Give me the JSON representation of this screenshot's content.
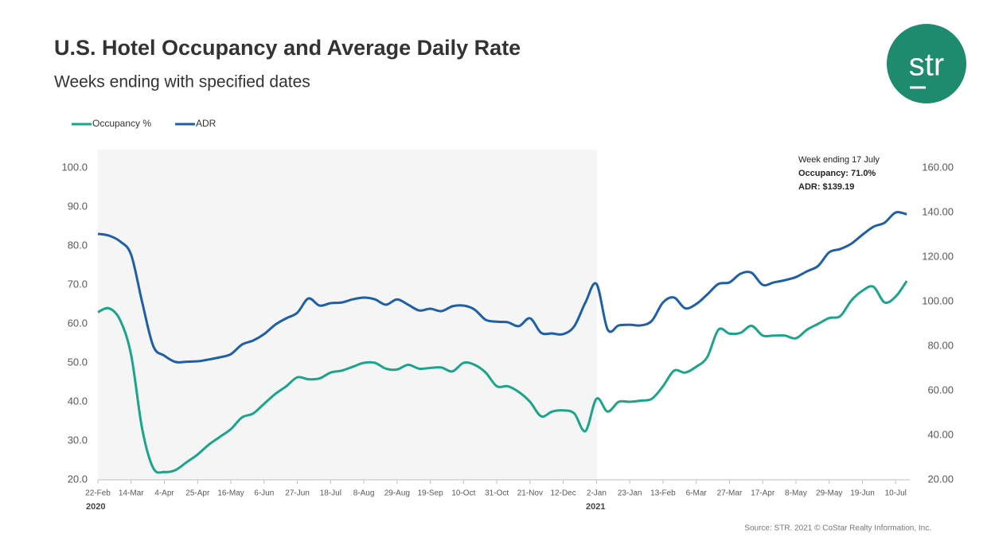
{
  "chart_data": {
    "type": "line",
    "title": "U.S. Hotel Occupancy and Average Daily Rate",
    "subtitle": "Weeks ending with specified dates",
    "logo_text": "str",
    "source": "Source: STR. 2021 © CoStar Realty Information, Inc.",
    "annotation": [
      "Week ending 17 July",
      "Occupancy: 71.0%",
      "ADR: $139.19"
    ],
    "year_labels": [
      "2020",
      "2021"
    ],
    "legend": "top-left",
    "categories": [
      "22-Feb",
      null,
      null,
      "14-Mar",
      null,
      null,
      "4-Apr",
      null,
      null,
      "25-Apr",
      null,
      null,
      "16-May",
      null,
      null,
      "6-Jun",
      null,
      null,
      "27-Jun",
      null,
      null,
      "18-Jul",
      null,
      null,
      "8-Aug",
      null,
      null,
      "29-Aug",
      null,
      null,
      "19-Sep",
      null,
      null,
      "10-Oct",
      null,
      null,
      "31-Oct",
      null,
      null,
      "21-Nov",
      null,
      null,
      "12-Dec",
      null,
      null,
      "2-Jan",
      null,
      null,
      "23-Jan",
      null,
      null,
      "13-Feb",
      null,
      null,
      "6-Mar",
      null,
      null,
      "27-Mar",
      null,
      null,
      "17-Apr",
      null,
      null,
      "8-May",
      null,
      null,
      "29-May",
      null,
      null,
      "19-Jun",
      null,
      null,
      "10-Jul",
      null
    ],
    "series": [
      {
        "name": "Occupancy %",
        "color": "#1aa58a",
        "values": [
          63.0,
          64.0,
          61,
          52,
          33,
          23,
          22,
          22.5,
          24.5,
          26.5,
          29,
          31,
          33,
          36,
          37,
          39.5,
          42,
          44,
          46.3,
          45.8,
          46,
          47.5,
          48,
          49,
          50,
          50,
          48.5,
          48.3,
          49.5,
          48.5,
          48.7,
          48.8,
          47.8,
          50,
          49.5,
          47.5,
          44,
          44,
          42.5,
          40,
          36.3,
          37.5,
          37.8,
          37,
          32.5,
          40.8,
          37.5,
          40,
          40,
          40.3,
          40.8,
          44,
          48,
          47.5,
          49,
          51.5,
          58.5,
          57.5,
          57.7,
          59.5,
          57,
          57,
          57,
          56.3,
          58.5,
          60,
          61.5,
          62,
          66,
          68.5,
          69.5,
          65.5,
          67,
          71.0
        ]
      },
      {
        "name": "ADR",
        "color": "#1f5fa8",
        "axis": "y2",
        "values": [
          130.4,
          129.6,
          127,
          121,
          99.6,
          80,
          75.7,
          72.9,
          73,
          73.2,
          74,
          75,
          76.4,
          80.7,
          82.5,
          85.4,
          89.6,
          92.5,
          95,
          101.4,
          98.2,
          99.3,
          99.6,
          101,
          101.8,
          101,
          98.6,
          101,
          98.6,
          96,
          96.8,
          95.7,
          97.9,
          98.2,
          96.4,
          91.8,
          91,
          90.7,
          89,
          92.5,
          86,
          85.7,
          85.4,
          89,
          99.6,
          107.9,
          87.5,
          89.3,
          89.6,
          89.3,
          91.4,
          99.6,
          101.8,
          97,
          98.9,
          103.2,
          107.9,
          108.6,
          112.5,
          112.9,
          107.5,
          108.6,
          109.6,
          111,
          113.6,
          116,
          122.1,
          123.6,
          126,
          130,
          133.6,
          135.4,
          140,
          139.19
        ]
      }
    ],
    "ylim": [
      20,
      100
    ],
    "yticks": [
      {
        "value": 20,
        "label": "20.0"
      },
      {
        "value": 30,
        "label": "30.0"
      },
      {
        "value": 40,
        "label": "40.0"
      },
      {
        "value": 50,
        "label": "50.0"
      },
      {
        "value": 60,
        "label": "60.0"
      },
      {
        "value": 70,
        "label": "70.0"
      },
      {
        "value": 80,
        "label": "80.0"
      },
      {
        "value": 90,
        "label": "90.0"
      },
      {
        "value": 100,
        "label": "100.0"
      }
    ],
    "y2lim": [
      20,
      160
    ],
    "y2ticks": [
      {
        "value": 20,
        "label": "20.00"
      },
      {
        "value": 40,
        "label": "40.00"
      },
      {
        "value": 60,
        "label": "60.00"
      },
      {
        "value": 80,
        "label": "80.00"
      },
      {
        "value": 100,
        "label": "100.00"
      },
      {
        "value": 120,
        "label": "120.00"
      },
      {
        "value": 140,
        "label": "140.00"
      },
      {
        "value": 160,
        "label": "160.00"
      }
    ]
  }
}
